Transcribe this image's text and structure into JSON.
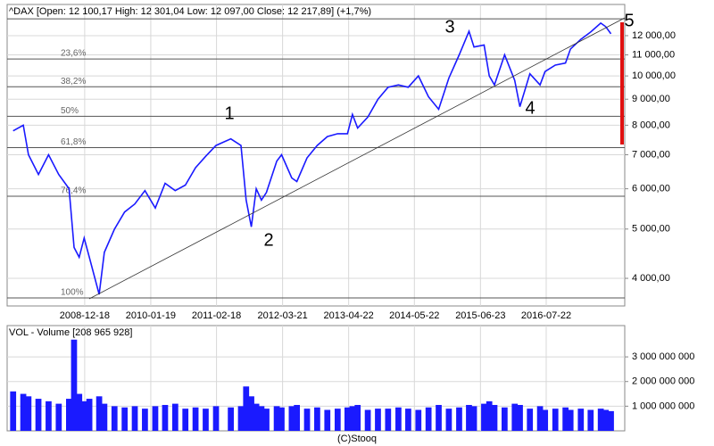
{
  "chart_data": [
    {
      "type": "line",
      "title": "^DAX [Open: 12 100,17  High: 12 301,04  Low: 12 097,00  Close: 12 217,89] (+1,7%)",
      "log_scale": true,
      "grid": true,
      "x": [
        "2007-10-15",
        "2007-12-15",
        "2008-01-15",
        "2008-03-15",
        "2008-05-15",
        "2008-07-15",
        "2008-09-15",
        "2008-10-15",
        "2008-11-15",
        "2008-12-15",
        "2009-01-15",
        "2009-03-15",
        "2009-04-15",
        "2009-06-15",
        "2009-08-15",
        "2009-10-15",
        "2009-12-15",
        "2010-02-15",
        "2010-04-15",
        "2010-06-15",
        "2010-08-15",
        "2010-10-15",
        "2010-12-15",
        "2011-02-15",
        "2011-05-15",
        "2011-07-15",
        "2011-08-15",
        "2011-09-15",
        "2011-10-15",
        "2011-11-15",
        "2011-12-15",
        "2012-02-15",
        "2012-03-15",
        "2012-05-15",
        "2012-06-15",
        "2012-08-15",
        "2012-10-15",
        "2012-12-15",
        "2013-02-15",
        "2013-04-15",
        "2013-05-15",
        "2013-06-15",
        "2013-08-15",
        "2013-10-15",
        "2013-12-15",
        "2014-02-15",
        "2014-04-15",
        "2014-06-15",
        "2014-08-15",
        "2014-10-15",
        "2014-12-15",
        "2015-02-15",
        "2015-04-15",
        "2015-05-15",
        "2015-07-15",
        "2015-08-15",
        "2015-09-15",
        "2015-11-15",
        "2016-01-15",
        "2016-02-15",
        "2016-04-15",
        "2016-06-15",
        "2016-07-15",
        "2016-09-15",
        "2016-11-15",
        "2016-12-15",
        "2017-02-15",
        "2017-04-15",
        "2017-06-15",
        "2017-07-15",
        "2017-08-15"
      ],
      "series": [
        {
          "name": "^DAX",
          "color": "#1a1aff",
          "values": [
            7800,
            8000,
            7000,
            6400,
            7000,
            6400,
            6000,
            4600,
            4400,
            4800,
            4400,
            3720,
            4500,
            5000,
            5400,
            5600,
            5950,
            5500,
            6150,
            5950,
            6100,
            6600,
            6950,
            7300,
            7520,
            7300,
            5700,
            5050,
            6000,
            5700,
            5900,
            6800,
            7000,
            6300,
            6200,
            6900,
            7300,
            7600,
            7700,
            7700,
            8400,
            7900,
            8300,
            9000,
            9500,
            9600,
            9500,
            10000,
            9100,
            8600,
            9900,
            11000,
            12240,
            11400,
            11500,
            10000,
            9600,
            11000,
            9800,
            8700,
            10100,
            9600,
            10200,
            10500,
            10600,
            11300,
            11800,
            12200,
            12700,
            12500,
            12100
          ]
        }
      ],
      "xlim": [
        "2007-09-09",
        "2017-11-06"
      ],
      "xticks": [
        "2008-12-18",
        "2010-01-19",
        "2011-02-18",
        "2012-03-21",
        "2013-04-22",
        "2014-05-22",
        "2015-06-23",
        "2016-07-22"
      ],
      "ylim": [
        3530,
        13820
      ],
      "yticks": [
        {
          "value": 4000,
          "label": "4 000,00"
        },
        {
          "value": 5000,
          "label": "5 000,00"
        },
        {
          "value": 6000,
          "label": "6 000,00"
        },
        {
          "value": 7000,
          "label": "7 000,00"
        },
        {
          "value": 8000,
          "label": "8 000,00"
        },
        {
          "value": 9000,
          "label": "9 000,00"
        },
        {
          "value": 10000,
          "label": "10 000,00"
        },
        {
          "value": 11000,
          "label": "11 000,00"
        },
        {
          "value": 12000,
          "label": "12 000,00"
        }
      ],
      "fib_levels": [
        {
          "value": 12950,
          "label": null
        },
        {
          "value": 10800,
          "label": "23,6%"
        },
        {
          "value": 9520,
          "label": "38,2%"
        },
        {
          "value": 8330,
          "label": "50%"
        },
        {
          "value": 7230,
          "label": "61,8%"
        },
        {
          "value": 5800,
          "label": "76,4%"
        },
        {
          "value": 3660,
          "label": "100%"
        }
      ],
      "annotations": [
        "1",
        "2",
        "3",
        "4",
        "5"
      ]
    },
    {
      "type": "bar",
      "title": "VOL - Volume [208 965 928]",
      "grid": true,
      "x": [
        "2007-10-15",
        "2007-12-15",
        "2008-01-15",
        "2008-03-15",
        "2008-05-15",
        "2008-07-15",
        "2008-09-15",
        "2008-10-15",
        "2008-11-15",
        "2008-12-15",
        "2009-01-15",
        "2009-03-15",
        "2009-04-15",
        "2009-06-15",
        "2009-08-15",
        "2009-10-15",
        "2009-12-15",
        "2010-02-15",
        "2010-04-15",
        "2010-06-15",
        "2010-08-15",
        "2010-10-15",
        "2010-12-15",
        "2011-02-15",
        "2011-05-15",
        "2011-07-15",
        "2011-08-15",
        "2011-09-15",
        "2011-10-15",
        "2011-11-15",
        "2011-12-15",
        "2012-02-15",
        "2012-03-15",
        "2012-05-15",
        "2012-06-15",
        "2012-08-15",
        "2012-10-15",
        "2012-12-15",
        "2013-02-15",
        "2013-04-15",
        "2013-05-15",
        "2013-06-15",
        "2013-08-15",
        "2013-10-15",
        "2013-12-15",
        "2014-02-15",
        "2014-04-15",
        "2014-06-15",
        "2014-08-15",
        "2014-10-15",
        "2014-12-15",
        "2015-02-15",
        "2015-04-15",
        "2015-05-15",
        "2015-07-15",
        "2015-08-15",
        "2015-09-15",
        "2015-11-15",
        "2016-01-15",
        "2016-02-15",
        "2016-04-15",
        "2016-06-15",
        "2016-07-15",
        "2016-09-15",
        "2016-11-15",
        "2016-12-15",
        "2017-02-15",
        "2017-04-15",
        "2017-06-15",
        "2017-07-15",
        "2017-08-15"
      ],
      "series": [
        {
          "name": "Volume",
          "color": "#1a1aff",
          "values": [
            1600000000,
            1500000000,
            1400000000,
            1300000000,
            1200000000,
            1100000000,
            1300000000,
            3700000000,
            1500000000,
            1200000000,
            1300000000,
            1400000000,
            1100000000,
            1000000000,
            950000000,
            1000000000,
            900000000,
            1000000000,
            1050000000,
            1100000000,
            900000000,
            950000000,
            900000000,
            1000000000,
            950000000,
            1000000000,
            1800000000,
            1400000000,
            1100000000,
            1000000000,
            900000000,
            1000000000,
            950000000,
            1000000000,
            1050000000,
            900000000,
            950000000,
            850000000,
            900000000,
            950000000,
            1000000000,
            1050000000,
            850000000,
            900000000,
            900000000,
            950000000,
            900000000,
            850000000,
            950000000,
            1050000000,
            900000000,
            950000000,
            1050000000,
            1000000000,
            1100000000,
            1200000000,
            1050000000,
            950000000,
            1100000000,
            1050000000,
            900000000,
            1000000000,
            850000000,
            900000000,
            950000000,
            850000000,
            900000000,
            850000000,
            900000000,
            850000000,
            800000000
          ]
        }
      ],
      "xlim": [
        "2007-09-09",
        "2017-11-06"
      ],
      "ylim": [
        0,
        4270000000
      ],
      "yticks": [
        {
          "value": 1000000000,
          "label": "1 000 000 000"
        },
        {
          "value": 2000000000,
          "label": "2 000 000 000"
        },
        {
          "value": 3000000000,
          "label": "3 000 000 000"
        }
      ]
    }
  ],
  "footer": "(C)Stooq"
}
